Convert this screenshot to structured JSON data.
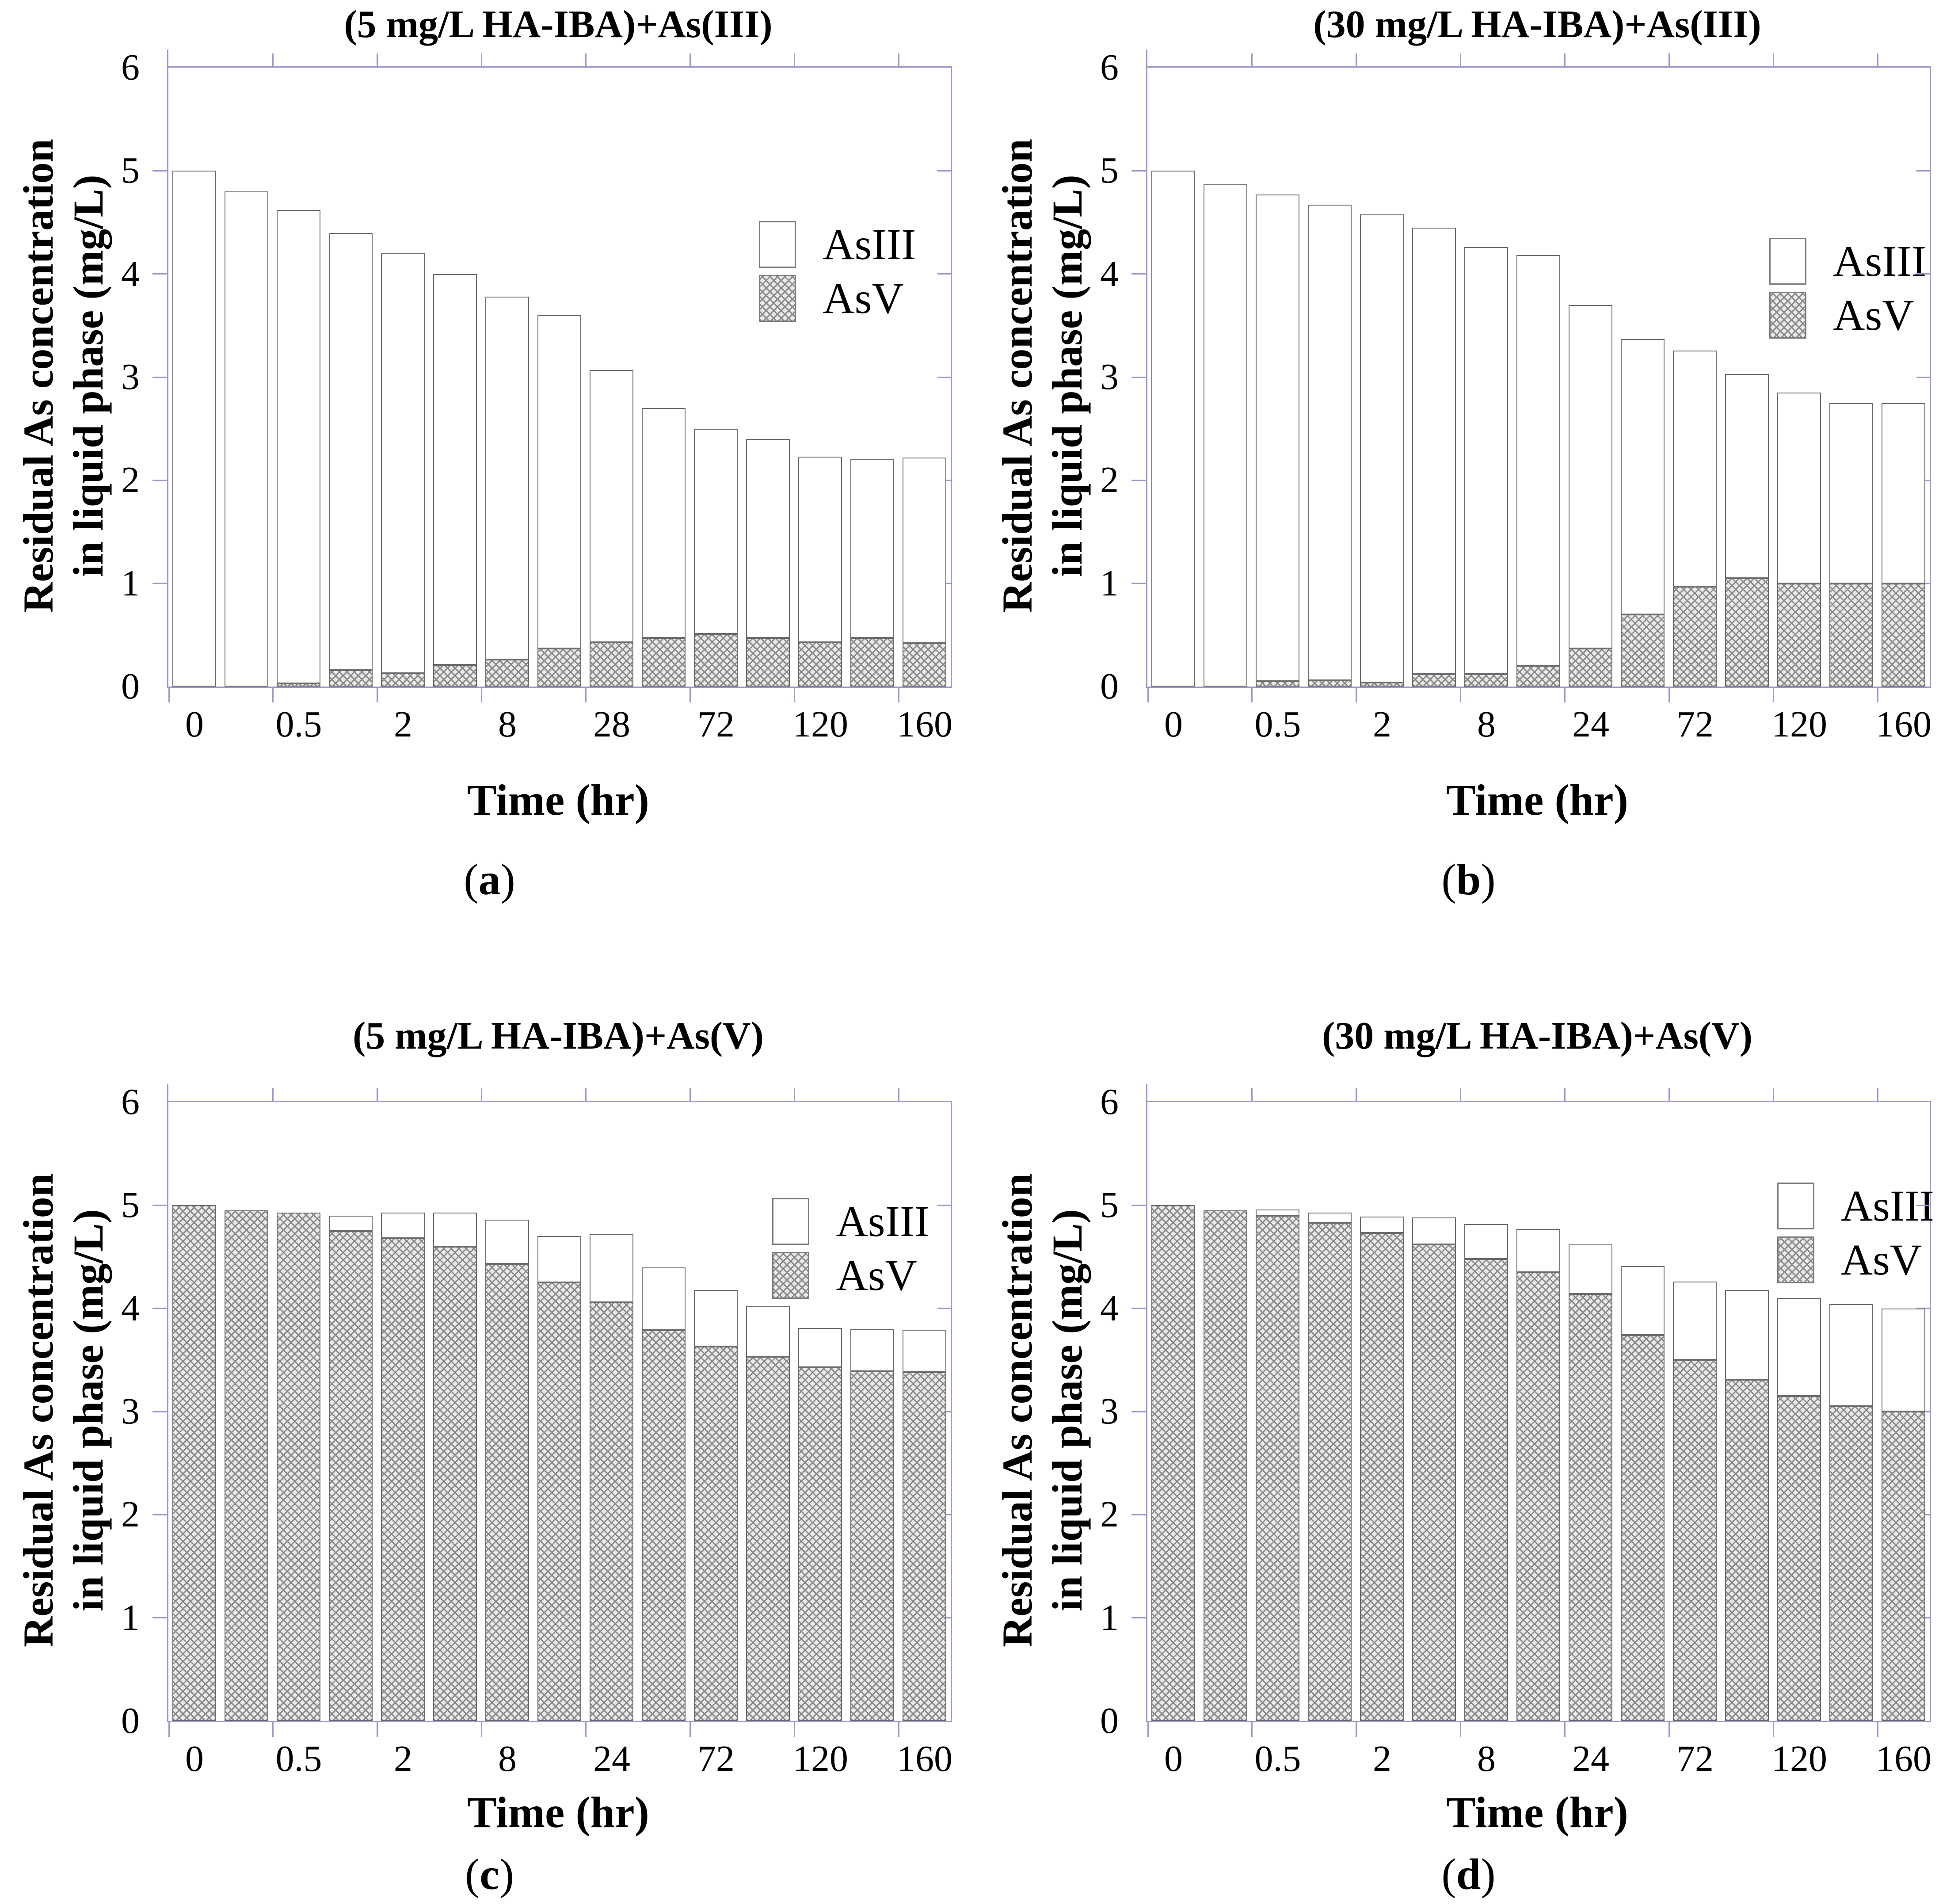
{
  "figure": {
    "ylabel_line1": "Residual As concentration",
    "ylabel_line2": "in liquid phase (mg/L)",
    "xlabel": "Time (hr)",
    "yticks": [
      0,
      1,
      2,
      3,
      4,
      5,
      6
    ],
    "legend": [
      "AsIII",
      "AsV"
    ],
    "legend_position": "upper right",
    "colors": {
      "axis": "#9b99ce",
      "bar_outline": "#6b6b6b",
      "hatch_line": "#8a8a8a",
      "hatch_bg": "#e9e9e9",
      "text": "#000000",
      "background": "#ffffff"
    }
  },
  "chart_data": [
    {
      "panel": "a",
      "type": "bar",
      "title": "(5 mg/L HA-IBA)+As(III)",
      "stacking": "AsV bottom, AsIII top",
      "ylim": [
        0,
        6
      ],
      "grid": "off",
      "xtick_labels": [
        "0",
        "0.5",
        "2",
        "8",
        "28",
        "72",
        "120",
        "160"
      ],
      "series": [
        {
          "name": "AsIII",
          "values": [
            5.0,
            4.8,
            4.59,
            4.24,
            4.07,
            3.79,
            3.52,
            3.23,
            2.64,
            2.23,
            1.99,
            1.93,
            1.8,
            1.73,
            1.8
          ]
        },
        {
          "name": "AsV",
          "values": [
            0.0,
            0.0,
            0.03,
            0.16,
            0.13,
            0.21,
            0.26,
            0.37,
            0.43,
            0.47,
            0.51,
            0.47,
            0.43,
            0.47,
            0.42
          ]
        }
      ]
    },
    {
      "panel": "b",
      "type": "bar",
      "title": "(30 mg/L HA-IBA)+As(III)",
      "stacking": "AsV bottom, AsIII top",
      "ylim": [
        0,
        6
      ],
      "grid": "off",
      "xtick_labels": [
        "0",
        "0.5",
        "2",
        "8",
        "24",
        "72",
        "120",
        "160"
      ],
      "series": [
        {
          "name": "AsIII",
          "values": [
            5.0,
            4.87,
            4.72,
            4.61,
            4.54,
            4.33,
            4.14,
            3.98,
            3.33,
            2.67,
            2.29,
            1.98,
            1.85,
            1.75,
            1.75
          ]
        },
        {
          "name": "AsV",
          "values": [
            0.0,
            0.0,
            0.05,
            0.06,
            0.04,
            0.12,
            0.12,
            0.2,
            0.37,
            0.7,
            0.97,
            1.05,
            1.0,
            1.0,
            1.0
          ]
        }
      ]
    },
    {
      "panel": "c",
      "type": "bar",
      "title": "(5 mg/L HA-IBA)+As(V)",
      "stacking": "AsV bottom, AsIII top",
      "ylim": [
        0,
        6
      ],
      "grid": "off",
      "xtick_labels": [
        "0",
        "0.5",
        "2",
        "8",
        "24",
        "72",
        "120",
        "160"
      ],
      "series": [
        {
          "name": "AsIII",
          "values": [
            0.0,
            0.0,
            0.0,
            0.15,
            0.25,
            0.33,
            0.43,
            0.45,
            0.66,
            0.61,
            0.55,
            0.49,
            0.38,
            0.41,
            0.41
          ]
        },
        {
          "name": "AsV",
          "values": [
            5.0,
            4.95,
            4.93,
            4.75,
            4.68,
            4.6,
            4.43,
            4.25,
            4.06,
            3.79,
            3.63,
            3.53,
            3.43,
            3.39,
            3.38
          ]
        }
      ]
    },
    {
      "panel": "d",
      "type": "bar",
      "title": "(30 mg/L HA-IBA)+As(V)",
      "stacking": "AsV bottom, AsIII top",
      "ylim": [
        0,
        6
      ],
      "grid": "off",
      "xtick_labels": [
        "0",
        "0.5",
        "2",
        "8",
        "24",
        "72",
        "120",
        "160"
      ],
      "series": [
        {
          "name": "AsIII",
          "values": [
            0.0,
            0.01,
            0.06,
            0.1,
            0.16,
            0.26,
            0.34,
            0.42,
            0.48,
            0.67,
            0.76,
            0.87,
            0.95,
            0.99,
            1.0
          ]
        },
        {
          "name": "AsV",
          "values": [
            5.0,
            4.95,
            4.9,
            4.83,
            4.73,
            4.62,
            4.48,
            4.35,
            4.14,
            3.74,
            3.5,
            3.31,
            3.15,
            3.05,
            3.0
          ]
        }
      ]
    }
  ]
}
